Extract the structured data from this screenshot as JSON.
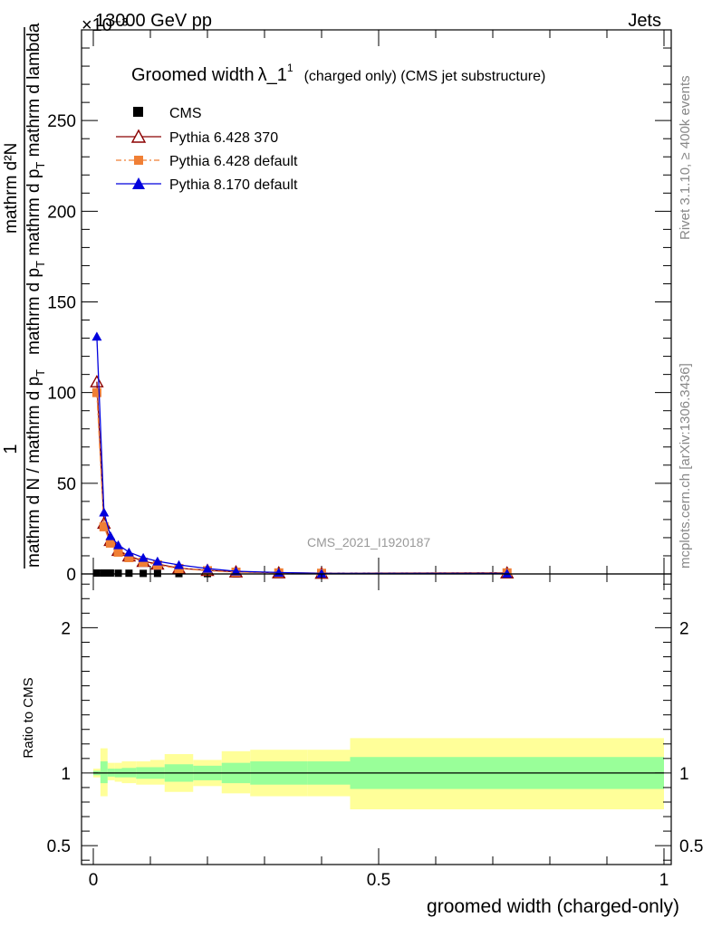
{
  "header": {
    "left": "13000 GeV pp",
    "right": "Jets",
    "exponent": "×10⁻³"
  },
  "side_labels": {
    "rivet": "Rivet 3.1.10, ≥ 400k events",
    "mcplots": "mcplots.cern.ch [arXiv:1306.3436]"
  },
  "watermark": "CMS_2021_I1920187",
  "colors": {
    "cms": "#000000",
    "p6_370": "#8b0000",
    "p6_default": "#f07f35",
    "p8": "#0000dd",
    "band_outer": "#ffff99",
    "band_inner": "#99ff99"
  },
  "chart_data": [
    {
      "type": "line",
      "panel": "main",
      "title_main": "Groomed width",
      "title_lambda": "λ_1",
      "title_sup": "1",
      "title_rest": "(charged only) (CMS jet substructure)",
      "ylabel_top": "mathrm d²N",
      "ylabel_den1": "mathrm d p",
      "ylabel_den1_sub": "T",
      "ylabel_den2": "mathrm d p",
      "ylabel_den2_sub": "T",
      "ylabel_den_rest": "mathrm d lambda",
      "ylabel_one": "1",
      "ylabel_bottom": "mathrm d N / mathrm d p",
      "ylabel_bottom_sub": "T",
      "xlim": [
        0,
        1
      ],
      "ylim": [
        0,
        300
      ],
      "yticks": [
        0,
        50,
        100,
        150,
        200,
        250
      ],
      "x": [
        0.0062,
        0.0187,
        0.03,
        0.0437,
        0.0625,
        0.0875,
        0.1125,
        0.15,
        0.2,
        0.25,
        0.325,
        0.4,
        0.725
      ],
      "series": [
        {
          "name": "CMS",
          "marker": "square",
          "values": [
            0.5,
            0.5,
            0.5,
            0.4,
            0.4,
            0.3,
            0.3,
            0.2,
            0.2,
            0.1,
            0.1,
            0.1,
            0.0
          ]
        },
        {
          "name": "Pythia 6.428 370",
          "marker": "open-triangle",
          "values": [
            106,
            28,
            18.5,
            13,
            10,
            7,
            5.5,
            3.2,
            2,
            1.2,
            0.7,
            0.4,
            0.6
          ]
        },
        {
          "name": "Pythia 6.428 default",
          "marker": "filled-square",
          "values": [
            100,
            26,
            17,
            12,
            9,
            6.5,
            5,
            3,
            1.8,
            1,
            0.6,
            0.4,
            0.6
          ]
        },
        {
          "name": "Pythia 8.170 default",
          "marker": "filled-triangle",
          "values": [
            131,
            34,
            21,
            16,
            12,
            9,
            7,
            5,
            3,
            1.5,
            0.8,
            0.3,
            0.3
          ]
        }
      ]
    },
    {
      "type": "area",
      "panel": "ratio",
      "ylabel": "Ratio to CMS",
      "xlabel": "groomed width (charged-only)",
      "xlim": [
        0,
        1
      ],
      "ylim": [
        0.37,
        2.37
      ],
      "yticks": [
        0.5,
        1,
        2
      ],
      "ytick_labels": [
        "0.5",
        "1",
        "2"
      ],
      "xticks": [
        0,
        0.5,
        1
      ],
      "xtick_labels": [
        "0",
        "0.5",
        "1"
      ],
      "bins": [
        [
          0,
          0.0125
        ],
        [
          0.0125,
          0.025
        ],
        [
          0.025,
          0.0375
        ],
        [
          0.0375,
          0.05
        ],
        [
          0.05,
          0.075
        ],
        [
          0.075,
          0.1
        ],
        [
          0.1,
          0.125
        ],
        [
          0.125,
          0.175
        ],
        [
          0.175,
          0.225
        ],
        [
          0.225,
          0.275
        ],
        [
          0.275,
          0.375
        ],
        [
          0.375,
          0.45
        ],
        [
          0.45,
          1.0
        ]
      ],
      "outer_low": [
        0.97,
        0.84,
        0.95,
        0.94,
        0.93,
        0.92,
        0.92,
        0.87,
        0.91,
        0.86,
        0.84,
        0.84,
        0.75
      ],
      "outer_high": [
        1.03,
        1.17,
        1.07,
        1.07,
        1.08,
        1.08,
        1.09,
        1.13,
        1.09,
        1.15,
        1.16,
        1.16,
        1.24
      ],
      "inner_low": [
        0.985,
        0.93,
        0.975,
        0.97,
        0.97,
        0.96,
        0.96,
        0.94,
        0.95,
        0.93,
        0.92,
        0.92,
        0.89
      ],
      "inner_high": [
        1.015,
        1.08,
        1.03,
        1.03,
        1.035,
        1.04,
        1.04,
        1.06,
        1.05,
        1.07,
        1.08,
        1.08,
        1.11
      ],
      "reference_line": 1
    }
  ]
}
